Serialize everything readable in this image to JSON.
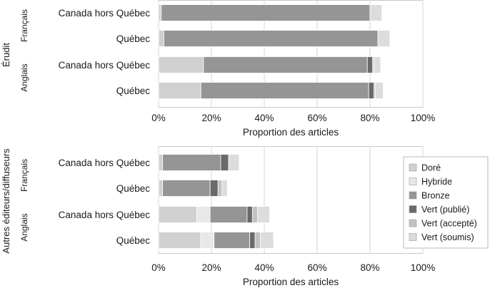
{
  "chart_data": [
    {
      "type": "bar",
      "orientation": "horizontal",
      "stacked": true,
      "group_label": "Érudit",
      "subgroups": [
        "Français",
        "Anglais"
      ],
      "categories": [
        "Canada hors Québec",
        "Québec",
        "Canada hors Québec",
        "Québec"
      ],
      "category_subgroup": [
        "Français",
        "Français",
        "Anglais",
        "Anglais"
      ],
      "series": [
        {
          "name": "Doré",
          "values": [
            1,
            2,
            17,
            16
          ]
        },
        {
          "name": "Hybride",
          "values": [
            0,
            0,
            0,
            0
          ]
        },
        {
          "name": "Bronze",
          "values": [
            79,
            81,
            62,
            63.5
          ]
        },
        {
          "name": "Vert (publié)",
          "values": [
            0,
            0,
            2,
            2
          ]
        },
        {
          "name": "Vert (accepté)",
          "values": [
            0,
            0,
            0.5,
            0.5
          ]
        },
        {
          "name": "Vert (soumis)",
          "values": [
            4.5,
            4.5,
            2.5,
            3
          ]
        }
      ],
      "xlabel": "Proportion des articles",
      "xlim": [
        0,
        100
      ],
      "xticks": [
        "0%",
        "20%",
        "40%",
        "60%",
        "80%",
        "100%"
      ],
      "grid": true
    },
    {
      "type": "bar",
      "orientation": "horizontal",
      "stacked": true,
      "group_label": "Autres éditeurs/diffuseurs",
      "subgroups": [
        "Français",
        "Anglais"
      ],
      "categories": [
        "Canada hors Québec",
        "Québec",
        "Canada hors Québec",
        "Québec"
      ],
      "category_subgroup": [
        "Français",
        "Français",
        "Anglais",
        "Anglais"
      ],
      "series": [
        {
          "name": "Doré",
          "values": [
            1.5,
            1.5,
            14.5,
            16
          ]
        },
        {
          "name": "Hybride",
          "values": [
            0,
            0,
            5,
            5
          ]
        },
        {
          "name": "Bronze",
          "values": [
            22,
            18,
            14,
            13.5
          ]
        },
        {
          "name": "Vert (publié)",
          "values": [
            3,
            3,
            2,
            2
          ]
        },
        {
          "name": "Vert (accepté)",
          "values": [
            0,
            1.5,
            2,
            2
          ]
        },
        {
          "name": "Vert (soumis)",
          "values": [
            4,
            2,
            4.5,
            5
          ]
        }
      ],
      "xlabel": "Proportion des articles",
      "xlim": [
        0,
        100
      ],
      "xticks": [
        "0%",
        "20%",
        "40%",
        "60%",
        "80%",
        "100%"
      ],
      "grid": true,
      "legend": "right"
    }
  ],
  "colors": {
    "Doré": "#d0d0d0",
    "Hybride": "#e8e8e8",
    "Bronze": "#959595",
    "Vert (publié)": "#6a6a6a",
    "Vert (accepté)": "#c2c2c2",
    "Vert (soumis)": "#dcdcdc",
    "bar_stroke": "#ffffff",
    "grid": "#d4d4d4",
    "frame": "#c8c8c8"
  }
}
